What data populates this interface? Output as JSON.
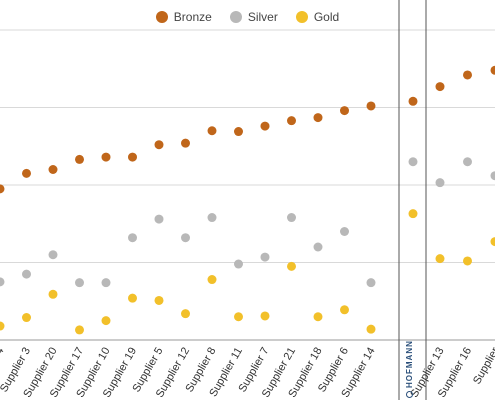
{
  "legend": {
    "items": [
      {
        "label": "Bronze",
        "color": "#c0661a"
      },
      {
        "label": "Silver",
        "color": "#b8b8b8"
      },
      {
        "label": "Gold",
        "color": "#f2c02a"
      }
    ]
  },
  "brand": {
    "text": "HOFMANN"
  },
  "chart_data": {
    "type": "scatter",
    "title": "",
    "ylim": [
      0,
      4
    ],
    "grid": true,
    "legend_position": "top-center",
    "series": [
      {
        "name": "Bronze",
        "color": "#c0661a"
      },
      {
        "name": "Silver",
        "color": "#b8b8b8"
      },
      {
        "name": "Gold",
        "color": "#f2c02a"
      }
    ],
    "panels": [
      {
        "categories": [
          "Supplier 4",
          "Supplier 3",
          "Supplier 20",
          "Supplier 17",
          "Supplier 10",
          "Supplier 19",
          "Supplier 5",
          "Supplier 12",
          "Supplier 8",
          "Supplier 11",
          "Supplier 7",
          "Supplier 21",
          "Supplier 18",
          "Supplier 6",
          "Supplier 14"
        ],
        "values": {
          "Bronze": [
            1.95,
            2.15,
            2.2,
            2.33,
            2.36,
            2.36,
            2.52,
            2.54,
            2.7,
            2.69,
            2.76,
            2.83,
            2.87,
            2.96,
            3.02
          ],
          "Silver": [
            0.75,
            0.85,
            1.1,
            0.74,
            0.74,
            1.32,
            1.56,
            1.32,
            1.58,
            0.98,
            1.07,
            1.58,
            1.2,
            1.4,
            0.74
          ],
          "Gold": [
            0.18,
            0.29,
            0.59,
            0.13,
            0.25,
            0.54,
            0.51,
            0.34,
            0.78,
            0.3,
            0.31,
            0.95,
            0.3,
            0.39,
            0.14
          ]
        }
      },
      {
        "categories": [
          "HOFMANN"
        ],
        "values": {
          "Bronze": [
            3.08
          ],
          "Silver": [
            2.3
          ],
          "Gold": [
            1.63
          ]
        }
      },
      {
        "categories": [
          "Supplier 13",
          "Supplier 16",
          "Supplier"
        ],
        "values": {
          "Bronze": [
            3.27,
            3.42,
            3.48
          ],
          "Silver": [
            2.03,
            2.3,
            2.12
          ],
          "Gold": [
            1.05,
            1.02,
            1.27
          ]
        }
      }
    ]
  }
}
